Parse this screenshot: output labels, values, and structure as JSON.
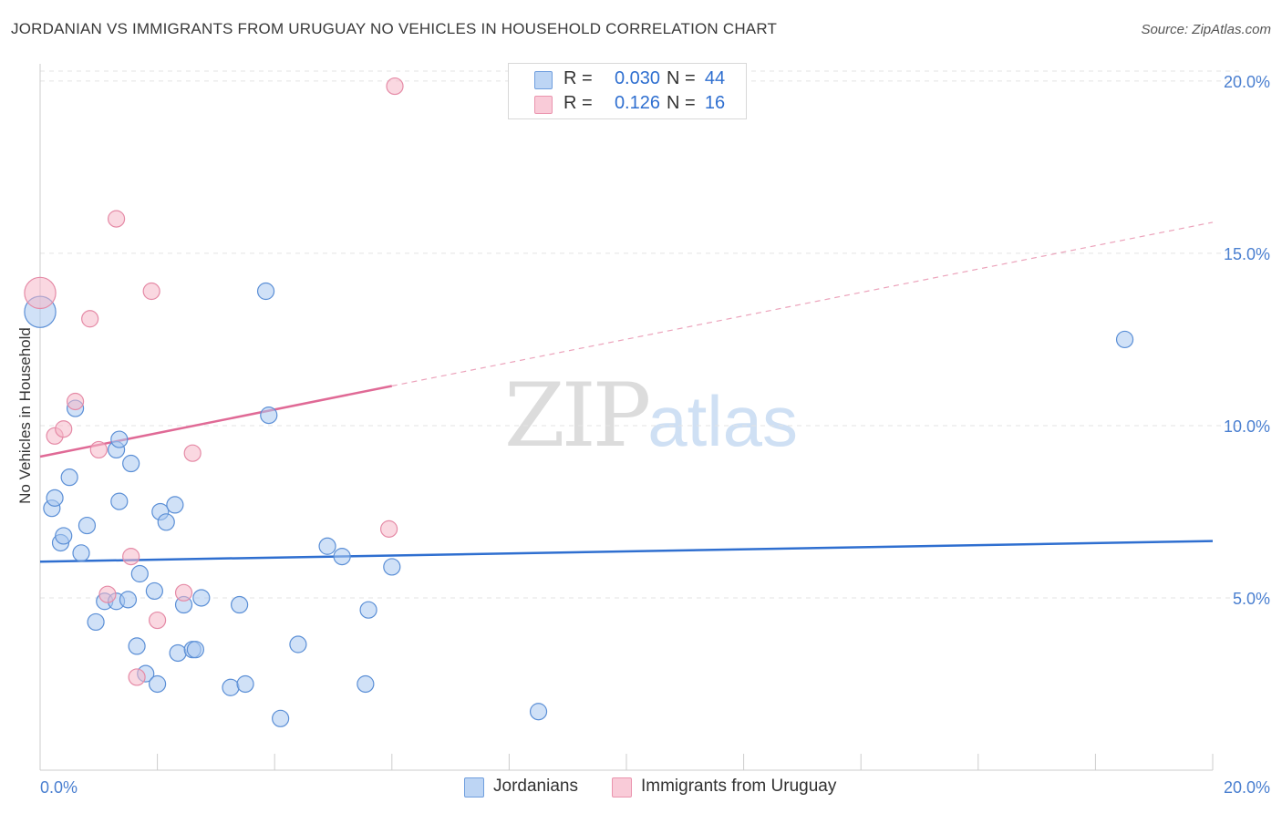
{
  "header": {
    "title": "JORDANIAN VS IMMIGRANTS FROM URUGUAY NO VEHICLES IN HOUSEHOLD CORRELATION CHART",
    "source": "Source: ZipAtlas.com"
  },
  "legend": {
    "rows": [
      {
        "r_label": "R =",
        "r_value": "0.030",
        "n_label": "N =",
        "n_value": "44",
        "color": "#a9c8f0"
      },
      {
        "r_label": "R =",
        "r_value": "0.126",
        "n_label": "N =",
        "n_value": "16",
        "color": "#f6b8c9"
      }
    ]
  },
  "watermark": {
    "zip": "ZIP",
    "atlas": "atlas"
  },
  "chart_data": {
    "type": "scatter",
    "title": "JORDANIAN VS IMMIGRANTS FROM URUGUAY NO VEHICLES IN HOUSEHOLD CORRELATION CHART",
    "xlabel": "",
    "ylabel": "No Vehicles in Household",
    "xlim": [
      0,
      20
    ],
    "ylim": [
      0,
      20.5
    ],
    "x_tick_labels": [
      "0.0%",
      "20.0%"
    ],
    "y_ticks": [
      5,
      10,
      15,
      20
    ],
    "y_tick_labels": [
      "5.0%",
      "10.0%",
      "15.0%",
      "20.0%"
    ],
    "grid": true,
    "legend_position": "top-center",
    "series": [
      {
        "name": "Jordanians",
        "color": "#a9c8f0",
        "stroke": "#5b8fd6",
        "points": [
          [
            0.0,
            13.3
          ],
          [
            0.2,
            7.6
          ],
          [
            0.25,
            7.9
          ],
          [
            0.35,
            6.6
          ],
          [
            0.4,
            6.8
          ],
          [
            0.5,
            8.5
          ],
          [
            0.6,
            10.5
          ],
          [
            0.7,
            6.3
          ],
          [
            0.8,
            7.1
          ],
          [
            0.95,
            4.3
          ],
          [
            1.1,
            4.9
          ],
          [
            1.3,
            4.9
          ],
          [
            1.3,
            9.3
          ],
          [
            1.35,
            9.6
          ],
          [
            1.35,
            7.8
          ],
          [
            1.5,
            4.95
          ],
          [
            1.55,
            8.9
          ],
          [
            1.65,
            3.6
          ],
          [
            1.7,
            5.7
          ],
          [
            1.8,
            2.8
          ],
          [
            1.95,
            5.2
          ],
          [
            2.0,
            2.5
          ],
          [
            2.05,
            7.5
          ],
          [
            2.15,
            7.2
          ],
          [
            2.3,
            7.7
          ],
          [
            2.35,
            3.4
          ],
          [
            2.45,
            4.8
          ],
          [
            2.6,
            3.5
          ],
          [
            2.65,
            3.5
          ],
          [
            2.75,
            5.0
          ],
          [
            3.25,
            2.4
          ],
          [
            3.4,
            4.8
          ],
          [
            3.5,
            2.5
          ],
          [
            3.85,
            13.9
          ],
          [
            3.9,
            10.3
          ],
          [
            4.1,
            1.5
          ],
          [
            4.4,
            3.65
          ],
          [
            4.9,
            6.5
          ],
          [
            5.15,
            6.2
          ],
          [
            5.55,
            2.5
          ],
          [
            5.6,
            4.65
          ],
          [
            6.0,
            5.9
          ],
          [
            8.5,
            1.7
          ],
          [
            18.5,
            12.5
          ]
        ],
        "sizes": [
          1.9,
          1,
          1,
          1,
          1,
          1,
          1,
          1,
          1,
          1,
          1,
          1,
          1,
          1,
          1,
          1,
          1,
          1,
          1,
          1,
          1,
          1,
          1,
          1,
          1,
          1,
          1,
          1,
          1,
          1,
          1,
          1,
          1,
          1,
          1,
          1,
          1,
          1,
          1,
          1,
          1,
          1,
          1,
          1
        ],
        "trend": {
          "x": [
            0,
            20
          ],
          "y": [
            6.05,
            6.65
          ],
          "style": "solid"
        }
      },
      {
        "name": "Immigrants from Uruguay",
        "color": "#f6b8c9",
        "stroke": "#e58aa6",
        "points": [
          [
            0.0,
            13.85
          ],
          [
            0.25,
            9.7
          ],
          [
            0.4,
            9.9
          ],
          [
            0.6,
            10.7
          ],
          [
            0.85,
            13.1
          ],
          [
            1.0,
            9.3
          ],
          [
            1.15,
            5.1
          ],
          [
            1.3,
            16.0
          ],
          [
            1.55,
            6.2
          ],
          [
            1.65,
            2.7
          ],
          [
            1.9,
            13.9
          ],
          [
            2.0,
            4.35
          ],
          [
            2.45,
            5.15
          ],
          [
            2.6,
            9.2
          ],
          [
            5.95,
            7.0
          ],
          [
            6.05,
            19.85
          ]
        ],
        "sizes": [
          1.9,
          1,
          1,
          1,
          1,
          1,
          1,
          1,
          1,
          1,
          1,
          1,
          1,
          1,
          1,
          1
        ],
        "trend": {
          "x": [
            0,
            6.0
          ],
          "y": [
            9.1,
            11.15
          ],
          "style": "solid",
          "extension": {
            "x": [
              6.0,
              20
            ],
            "y": [
              11.15,
              15.9
            ],
            "style": "dashed"
          }
        }
      }
    ]
  }
}
